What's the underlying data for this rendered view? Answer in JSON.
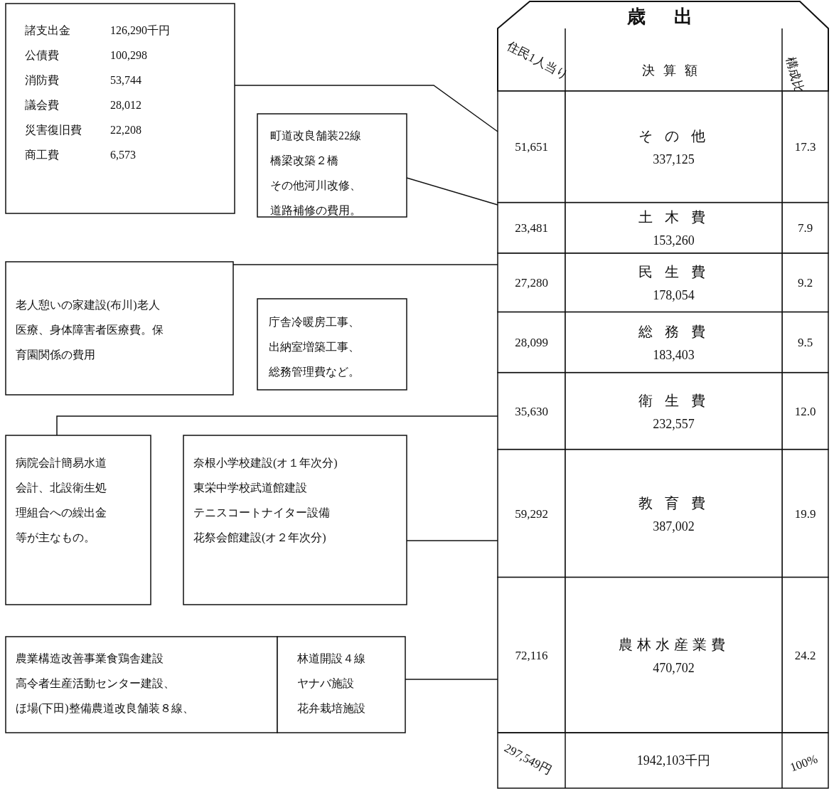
{
  "chart_data": {
    "type": "bar",
    "stacked": true,
    "title": "歳出",
    "categories": [
      null
    ],
    "series": [
      {
        "name": "農林水産業費",
        "color": "#ffffff",
        "values": [
          470702
        ],
        "value_labels": [
          "470,702"
        ]
      },
      {
        "name": "教 育 費",
        "color": "#ffffff",
        "values": [
          387002
        ],
        "value_labels": [
          "387,002"
        ]
      },
      {
        "name": "衛 生 費",
        "color": "#ffffff",
        "values": [
          232557
        ],
        "value_labels": [
          "232,557"
        ]
      },
      {
        "name": "総 務 費",
        "color": "#ffffff",
        "values": [
          183403
        ],
        "value_labels": [
          "183,403"
        ]
      },
      {
        "name": "民 生 費",
        "color": "#ffffff",
        "values": [
          178054
        ],
        "value_labels": [
          "178,054"
        ]
      },
      {
        "name": "土 木 費",
        "color": "#ffffff",
        "values": [
          153260
        ],
        "value_labels": [
          "153,260"
        ]
      },
      {
        "name": "そ の 他",
        "color": "#ffffff",
        "values": [
          337125
        ],
        "value_labels": [
          "337,125"
        ]
      }
    ],
    "annotations": [
      "72,116",
      "59,292",
      "35,630",
      "28,099",
      "27,280",
      "23,481",
      "51,651",
      "24.2",
      "19.9",
      "12.0",
      "9.5",
      "9.2",
      "7.9",
      "17.3",
      "297,549円",
      "1942,103千円",
      "100%",
      "住民1人当り",
      "決算額",
      "構成比",
      "諸支出金",
      "公債費",
      "消防費",
      "議会費",
      "災害復旧費",
      "商工費",
      "126,290千円",
      "100,298",
      "53,744",
      "28,012",
      "22,208",
      "6,573",
      "町道改良舗装22線",
      "橋梁改築２橋",
      "その他河川改修、",
      "道路補修の費用。",
      "老人憩いの家建設(布川)老人",
      "医療、身体障害者医療費。保",
      "育園関係の費用",
      "庁舎冷暖房工事、",
      "出納室増築工事、",
      "総務管理費など。",
      "病院会計簡易水道",
      "会計、北設衛生処",
      "理組合への繰出金",
      "等が主なもの。",
      "奈根小学校建設(オ１年次分)",
      "東栄中学校武道館建設",
      "テニスコートナイター設備",
      "花祭会館建設(オ２年次分)",
      "農業構造改善事業食鶏舎建設",
      "高令者生産活動センター建設、",
      "ほ場(下田)整備農道改良舗装８線、",
      "林道開設４線",
      "ヤナバ施設",
      "花弁栽培施設"
    ]
  }
}
